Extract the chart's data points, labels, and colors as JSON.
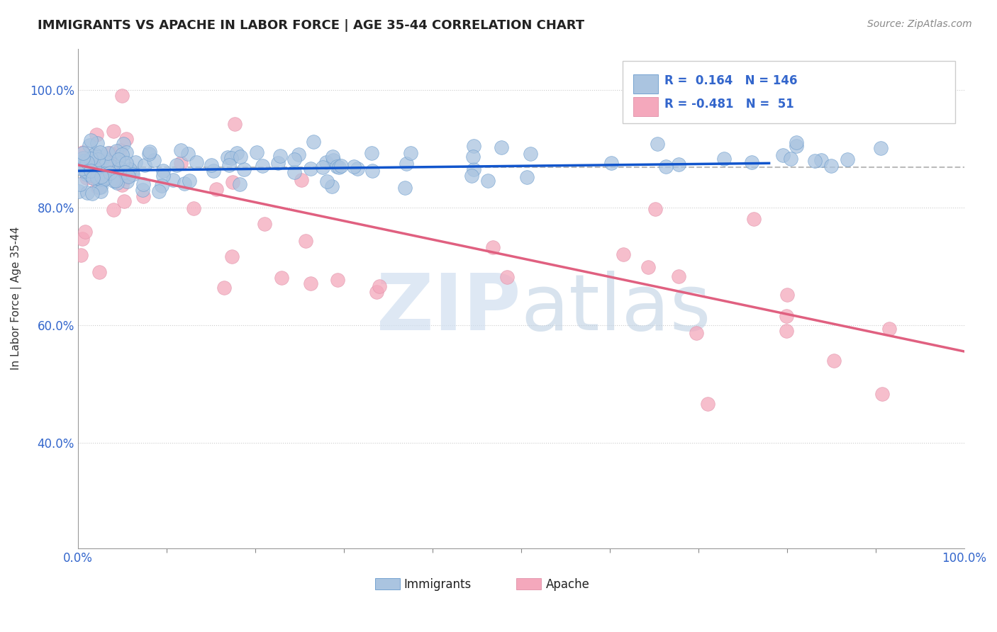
{
  "title": "IMMIGRANTS VS APACHE IN LABOR FORCE | AGE 35-44 CORRELATION CHART",
  "source": "Source: ZipAtlas.com",
  "ylabel": "In Labor Force | Age 35-44",
  "xlim": [
    0.0,
    1.0
  ],
  "ylim": [
    0.22,
    1.07
  ],
  "y_tick_labels": [
    "40.0%",
    "60.0%",
    "80.0%",
    "100.0%"
  ],
  "y_tick_positions": [
    0.4,
    0.6,
    0.8,
    1.0
  ],
  "immigrants_R": 0.164,
  "immigrants_N": 146,
  "apache_R": -0.481,
  "apache_N": 51,
  "immigrants_color": "#aac4e0",
  "apache_color": "#f4a8bc",
  "immigrants_line_color": "#1155cc",
  "apache_line_color": "#e06080",
  "background_color": "#ffffff",
  "watermark_color": "#d0dff0",
  "dashed_line_y": 0.868,
  "imm_line_start_x": 0.0,
  "imm_line_end_x": 0.78,
  "imm_line_start_y": 0.862,
  "imm_line_end_y": 0.875,
  "apache_line_start_x": 0.0,
  "apache_line_end_x": 1.0,
  "apache_line_start_y": 0.872,
  "apache_line_end_y": 0.555
}
